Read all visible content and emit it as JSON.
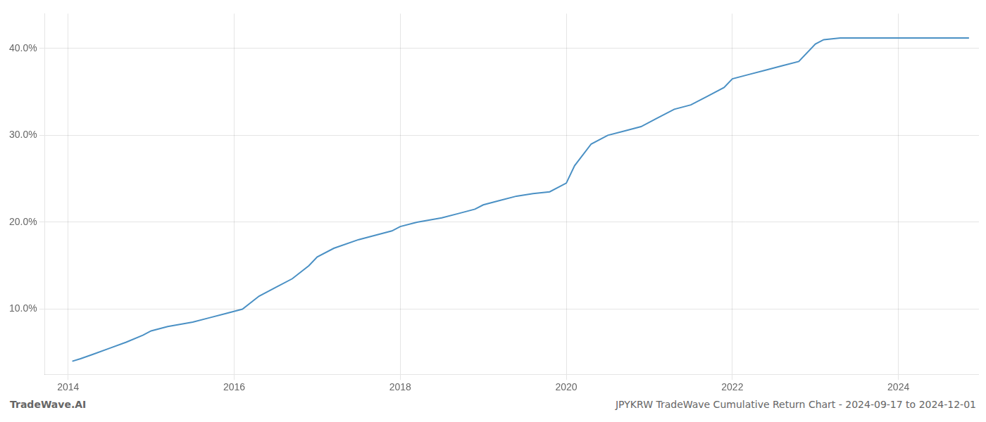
{
  "chart_data": {
    "type": "line",
    "annotations": [
      "TradeWave.AI",
      "JPYKRW TradeWave Cumulative Return Chart - 2024-09-17 to 2024-12-01"
    ],
    "color": "#4a90c4",
    "grid": true,
    "x": [
      2014.05,
      2014.15,
      2014.3,
      2014.5,
      2014.7,
      2014.9,
      2015.0,
      2015.2,
      2015.5,
      2015.7,
      2015.9,
      2016.1,
      2016.3,
      2016.5,
      2016.7,
      2016.9,
      2017.0,
      2017.2,
      2017.5,
      2017.7,
      2017.9,
      2018.0,
      2018.2,
      2018.5,
      2018.7,
      2018.9,
      2019.0,
      2019.2,
      2019.4,
      2019.6,
      2019.8,
      2020.0,
      2020.1,
      2020.3,
      2020.5,
      2020.7,
      2020.9,
      2021.1,
      2021.3,
      2021.5,
      2021.7,
      2021.9,
      2022.0,
      2022.2,
      2022.4,
      2022.6,
      2022.8,
      2023.0,
      2023.1,
      2023.3,
      2023.5,
      2023.7,
      2024.0,
      2024.5,
      2024.85
    ],
    "values": [
      4.0,
      4.3,
      4.8,
      5.5,
      6.2,
      7.0,
      7.5,
      8.0,
      8.5,
      9.0,
      9.5,
      10.0,
      11.5,
      12.5,
      13.5,
      15.0,
      16.0,
      17.0,
      18.0,
      18.5,
      19.0,
      19.5,
      20.0,
      20.5,
      21.0,
      21.5,
      22.0,
      22.5,
      23.0,
      23.3,
      23.5,
      24.5,
      26.5,
      29.0,
      30.0,
      30.5,
      31.0,
      32.0,
      33.0,
      33.5,
      34.5,
      35.5,
      36.5,
      37.0,
      37.5,
      38.0,
      38.5,
      40.5,
      41.0,
      41.2,
      41.2,
      41.2,
      41.2,
      41.2,
      41.2
    ],
    "xlim": [
      2013.72,
      2024.97
    ],
    "xticks": [
      2014,
      2016,
      2018,
      2020,
      2022,
      2024
    ],
    "ylim": [
      2.5,
      44.0
    ],
    "yticks": [
      {
        "value": 10.0,
        "label": "10.0%"
      },
      {
        "value": 20.0,
        "label": "20.0%"
      },
      {
        "value": 30.0,
        "label": "30.0%"
      },
      {
        "value": 40.0,
        "label": "40.0%"
      }
    ]
  }
}
